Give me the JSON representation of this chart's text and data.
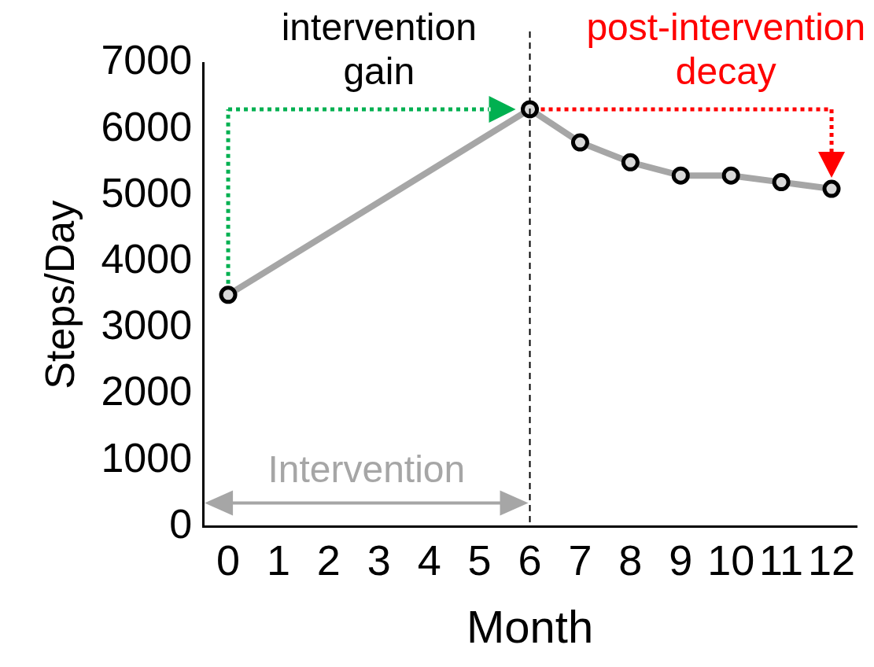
{
  "chart_data": {
    "type": "line",
    "xlabel": "Month",
    "ylabel": "Steps/Day",
    "x": [
      0,
      6,
      7,
      8,
      9,
      10,
      11,
      12
    ],
    "series": [
      {
        "color": "#a6a6a6",
        "values": [
          3500,
          6300,
          5800,
          5500,
          5300,
          5300,
          5200,
          5100
        ]
      }
    ],
    "xlim": [
      -0.5,
      12.5
    ],
    "xticks": [
      0,
      1,
      2,
      3,
      4,
      5,
      6,
      7,
      8,
      9,
      10,
      11,
      12
    ],
    "ylim": [
      0,
      7000
    ],
    "yticks": [
      0,
      1000,
      2000,
      3000,
      4000,
      5000,
      6000,
      7000
    ],
    "grid": false,
    "legend": false,
    "marker": "circle",
    "line_style": "solid",
    "ref_lines": [
      {
        "axis": "x",
        "value": 6,
        "color": "#000000",
        "line_style": "dashed"
      }
    ],
    "annotations": [
      "intervention gain",
      "post-intervention decay",
      "Intervention"
    ]
  }
}
